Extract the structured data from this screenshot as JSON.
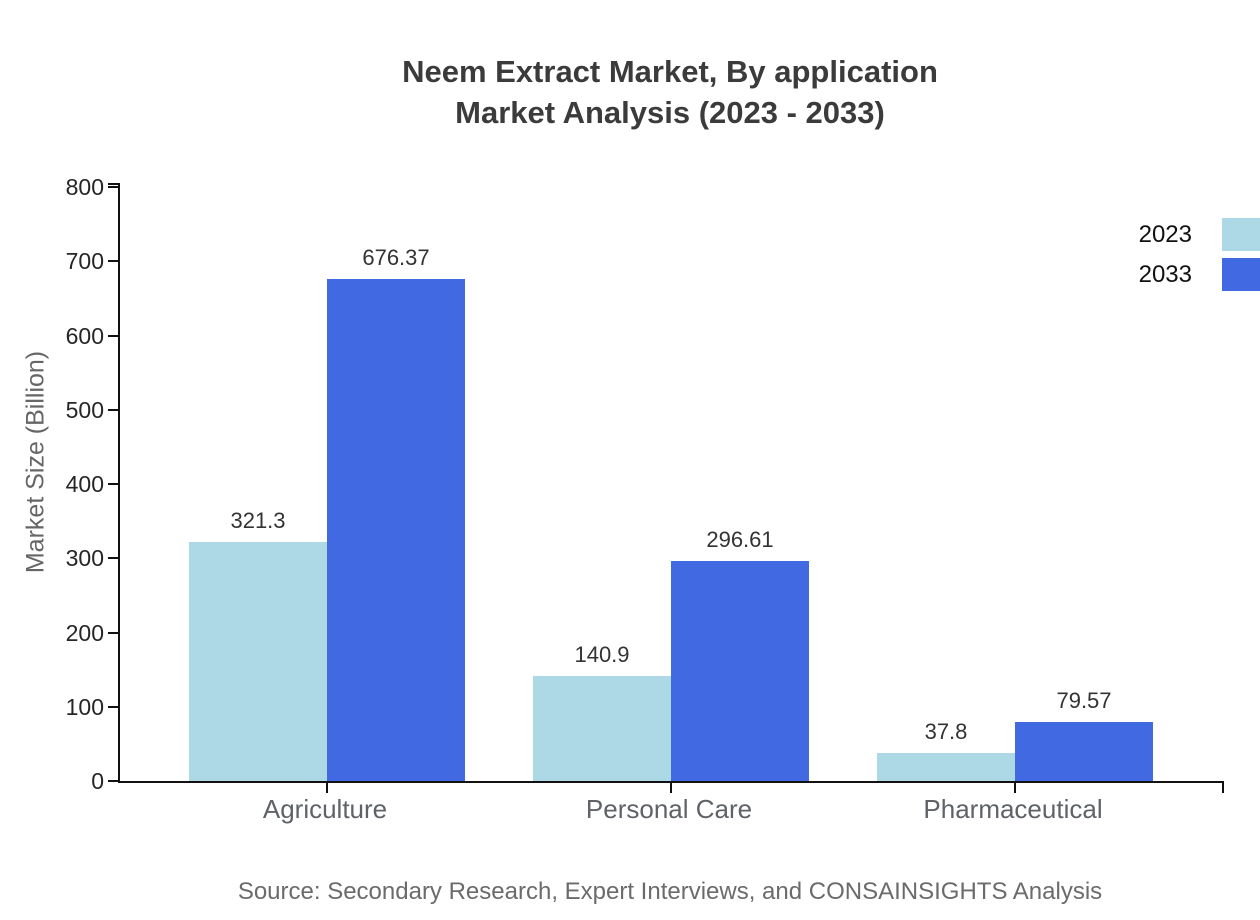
{
  "title": {
    "line1": "Neem Extract Market, By application",
    "line2": "Market Analysis (2023 - 2033)"
  },
  "source": "Source: Secondary Research, Expert Interviews, and CONSAINSIGHTS Analysis",
  "chart_data": {
    "type": "bar",
    "title": "Neem Extract Market, By application Market Analysis (2023 - 2033)",
    "categories": [
      "Agriculture",
      "Personal Care",
      "Pharmaceutical"
    ],
    "series": [
      {
        "name": "2023",
        "color": "#ADD8E6",
        "values": [
          321.3,
          140.9,
          37.8
        ]
      },
      {
        "name": "2033",
        "color": "#4169E1",
        "values": [
          676.37,
          296.61,
          79.57
        ]
      }
    ],
    "xlabel": "",
    "ylabel": "Market Size (Billion)",
    "ylim": [
      0,
      800
    ],
    "yticks": [
      0,
      100,
      200,
      300,
      400,
      500,
      600,
      700,
      800
    ],
    "grid": false,
    "bar_labels": true,
    "legend_position": "top-right"
  },
  "colors": {
    "axis": "#111111",
    "title_text": "#3b3b3b",
    "value_label_text": "#333333",
    "tick_label_text": "#262626",
    "category_label_text": "#5f6368",
    "muted_text": "#6b6b6b"
  }
}
